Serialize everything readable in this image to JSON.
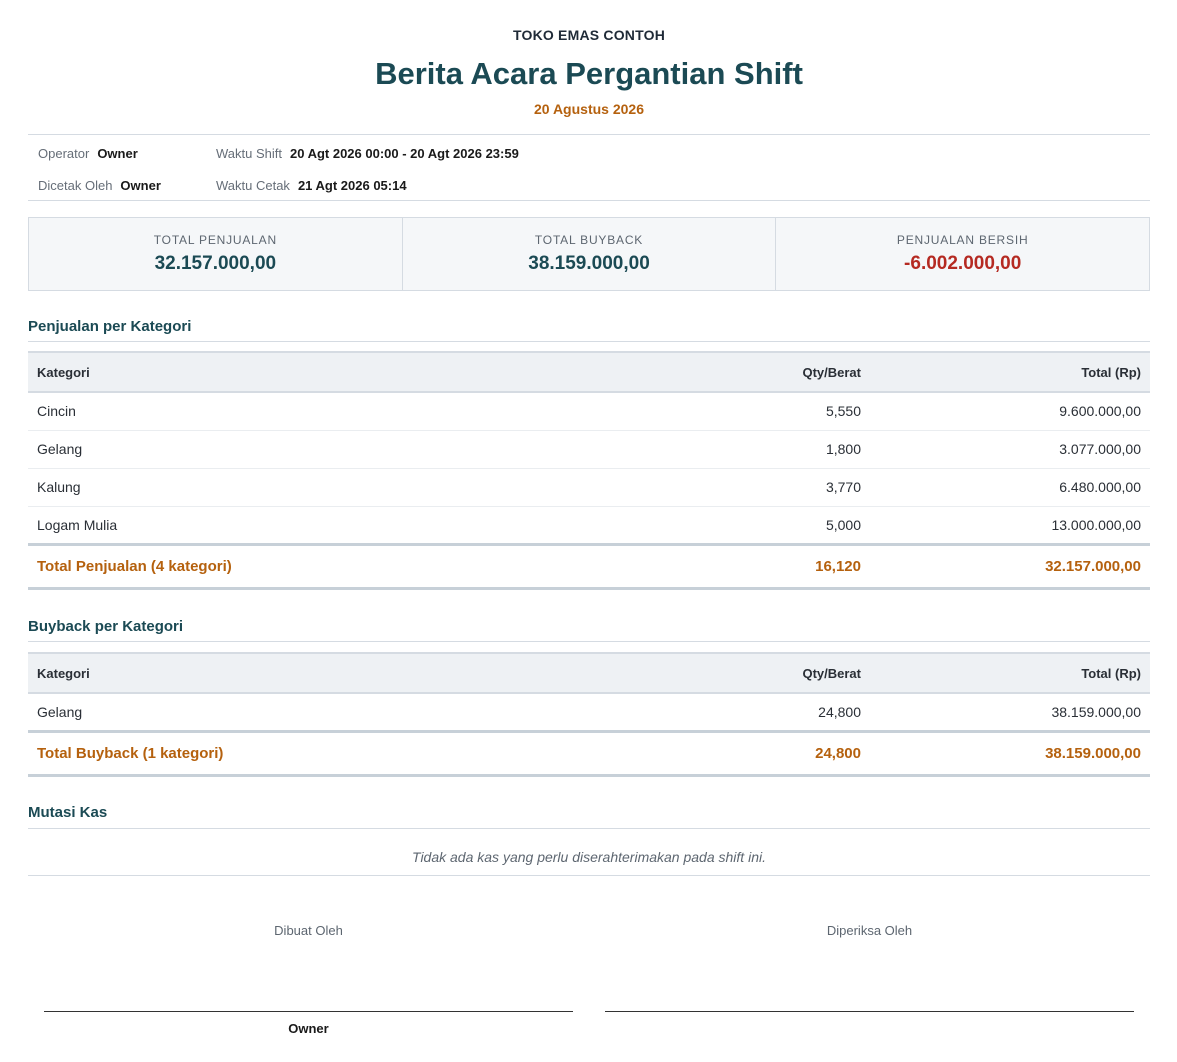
{
  "header": {
    "store_name": "TOKO EMAS CONTOH",
    "title": "Berita Acara Pergantian Shift",
    "date": "20 Agustus 2026"
  },
  "meta": {
    "operator_label": "Operator",
    "operator_value": "Owner",
    "shift_time_label": "Waktu Shift",
    "shift_time_value": "20 Agt 2026 00:00 - 20 Agt 2026 23:59",
    "printed_by_label": "Dicetak Oleh",
    "printed_by_value": "Owner",
    "print_time_label": "Waktu Cetak",
    "print_time_value": "21 Agt 2026 05:14"
  },
  "summary": {
    "total_sales_label": "TOTAL PENJUALAN",
    "total_sales_value": "32.157.000,00",
    "total_buyback_label": "TOTAL BUYBACK",
    "total_buyback_value": "38.159.000,00",
    "net_sales_label": "PENJUALAN BERSIH",
    "net_sales_value": "-6.002.000,00"
  },
  "sales": {
    "section_title": "Penjualan per Kategori",
    "headers": {
      "category": "Kategori",
      "qty": "Qty/Berat",
      "total": "Total (Rp)"
    },
    "rows": [
      {
        "category": "Cincin",
        "qty": "5,550",
        "total": "9.600.000,00"
      },
      {
        "category": "Gelang",
        "qty": "1,800",
        "total": "3.077.000,00"
      },
      {
        "category": "Kalung",
        "qty": "3,770",
        "total": "6.480.000,00"
      },
      {
        "category": "Logam Mulia",
        "qty": "5,000",
        "total": "13.000.000,00"
      }
    ],
    "total_row": {
      "label": "Total Penjualan (4 kategori)",
      "qty": "16,120",
      "total": "32.157.000,00"
    }
  },
  "buyback": {
    "section_title": "Buyback per Kategori",
    "headers": {
      "category": "Kategori",
      "qty": "Qty/Berat",
      "total": "Total (Rp)"
    },
    "rows": [
      {
        "category": "Gelang",
        "qty": "24,800",
        "total": "38.159.000,00"
      }
    ],
    "total_row": {
      "label": "Total Buyback (1 kategori)",
      "qty": "24,800",
      "total": "38.159.000,00"
    }
  },
  "cash": {
    "section_title": "Mutasi Kas",
    "empty_message": "Tidak ada kas yang perlu diserahterimakan pada shift ini."
  },
  "signatures": {
    "made_by_label": "Dibuat Oleh",
    "made_by_name": "Owner",
    "checked_by_label": "Diperiksa Oleh",
    "checked_by_name": ""
  },
  "colors": {
    "primary": "#1b4a54",
    "accent": "#b5610e",
    "negative": "#b52a22"
  }
}
